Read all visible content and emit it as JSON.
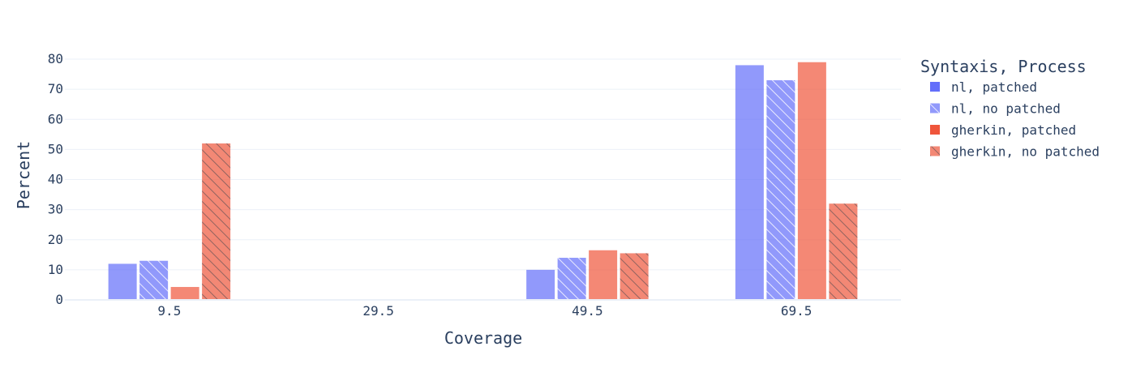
{
  "chart_data": {
    "type": "bar",
    "title": "",
    "xlabel": "Coverage",
    "ylabel": "Percent",
    "categories": [
      "9.5",
      "29.5",
      "49.5",
      "69.5"
    ],
    "ylim": [
      0,
      84
    ],
    "yticks": [
      0,
      10,
      20,
      30,
      40,
      50,
      60,
      70,
      80
    ],
    "grid": true,
    "legend": {
      "title": "Syntaxis, Process",
      "placement": "right"
    },
    "series": [
      {
        "name": "nl, patched",
        "color": "#636efa",
        "pattern": "none",
        "values": [
          12,
          0,
          10,
          78
        ]
      },
      {
        "name": "nl, no patched",
        "color": "#636efa",
        "pattern": "hatch",
        "values": [
          13,
          0,
          14,
          73
        ]
      },
      {
        "name": "gherkin, patched",
        "color": "#ef553b",
        "pattern": "none",
        "values": [
          4.3,
          0,
          16.5,
          79
        ]
      },
      {
        "name": "gherkin, no patched",
        "color": "#ef553b",
        "pattern": "hatch",
        "values": [
          52,
          0,
          15.5,
          32
        ]
      }
    ]
  }
}
